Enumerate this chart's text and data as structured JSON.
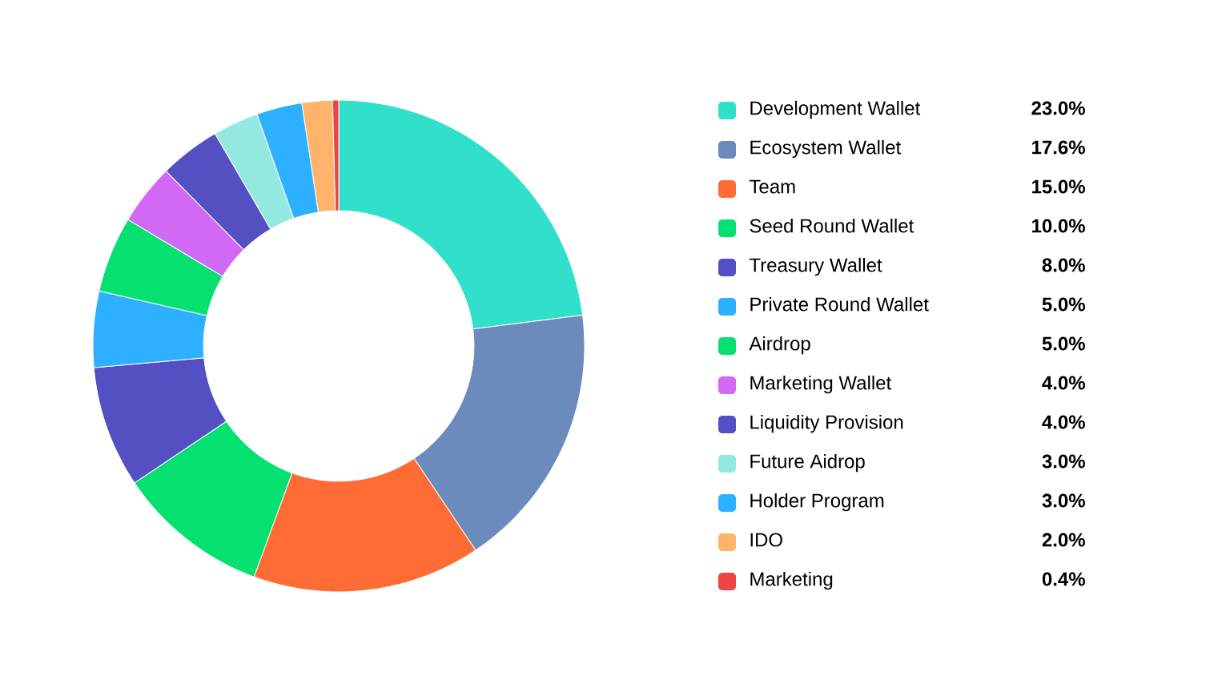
{
  "chart_data": {
    "type": "donut",
    "categories": [
      "Development Wallet",
      "Ecosystem Wallet",
      "Team",
      "Seed Round Wallet",
      "Treasury Wallet",
      "Private Round Wallet",
      "Airdrop",
      "Marketing Wallet",
      "Liquidity Provision",
      "Future Aidrop",
      "Holder Program",
      "IDO",
      "Marketing"
    ],
    "values": [
      23.0,
      17.6,
      15.0,
      10.0,
      8.0,
      5.0,
      5.0,
      4.0,
      4.0,
      3.0,
      3.0,
      2.0,
      0.4
    ],
    "value_labels": [
      "23.0%",
      "17.6%",
      "15.0%",
      "10.0%",
      "8.0%",
      "5.0%",
      "5.0%",
      "4.0%",
      "4.0%",
      "3.0%",
      "3.0%",
      "2.0%",
      "0.4%"
    ],
    "colors": [
      "#31e0cb",
      "#6b8bbd",
      "#ff6b35",
      "#05e070",
      "#5450c4",
      "#2db0ff",
      "#05e070",
      "#d169f5",
      "#5450c4",
      "#93e8e0",
      "#2db0ff",
      "#ffb36b",
      "#ef4444"
    ],
    "legend": "right"
  }
}
